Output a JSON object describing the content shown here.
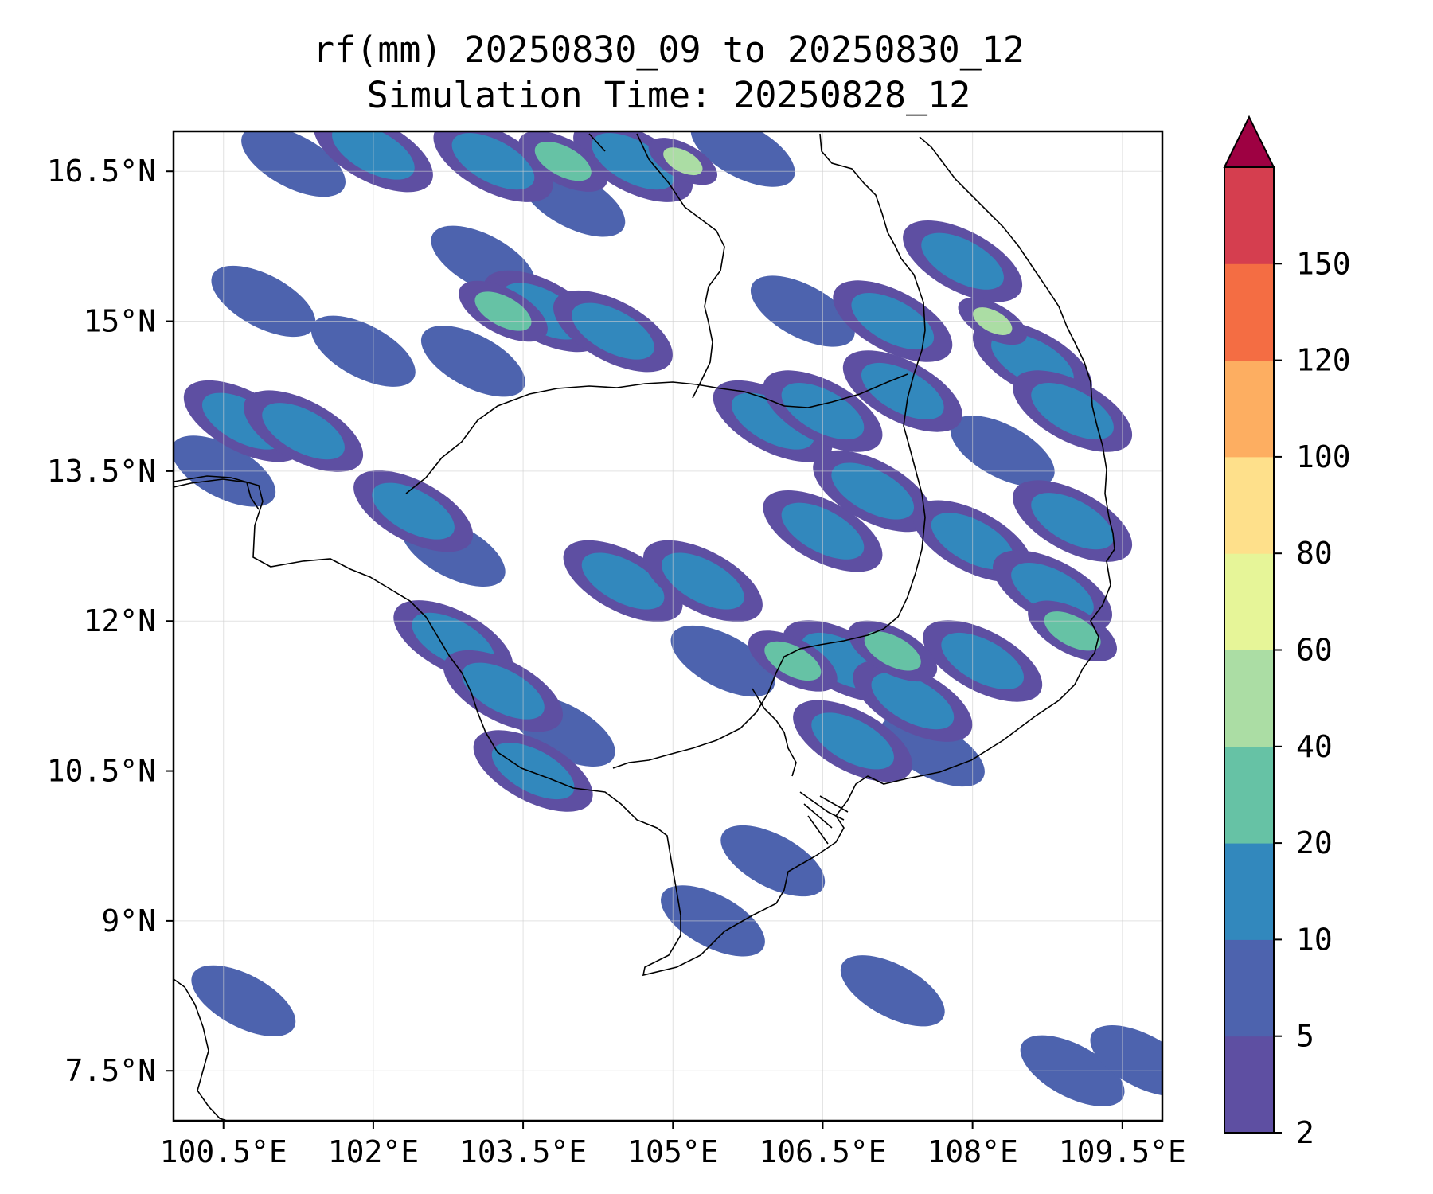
{
  "title": {
    "line1": "rf(mm) 20250830_09 to 20250830_12",
    "line2": "Simulation Time: 20250828_12"
  },
  "map": {
    "lon_range": [
      100.0,
      109.9
    ],
    "lat_range": [
      7.0,
      16.9
    ],
    "x_ticks": [
      {
        "value": 100.5,
        "label": "100.5°E"
      },
      {
        "value": 102.0,
        "label": "102°E"
      },
      {
        "value": 103.5,
        "label": "103.5°E"
      },
      {
        "value": 105.0,
        "label": "105°E"
      },
      {
        "value": 106.5,
        "label": "106.5°E"
      },
      {
        "value": 108.0,
        "label": "108°E"
      },
      {
        "value": 109.5,
        "label": "109.5°E"
      }
    ],
    "y_ticks": [
      {
        "value": 16.5,
        "label": "16.5°N"
      },
      {
        "value": 15.0,
        "label": "15°N"
      },
      {
        "value": 13.5,
        "label": "13.5°N"
      },
      {
        "value": 12.0,
        "label": "12°N"
      },
      {
        "value": 10.5,
        "label": "10.5°N"
      },
      {
        "value": 9.0,
        "label": "9°N"
      },
      {
        "value": 7.5,
        "label": "7.5°N"
      }
    ],
    "grid": true
  },
  "colorbar": {
    "levels": [
      {
        "label": "2",
        "value": 2
      },
      {
        "label": "5",
        "value": 5
      },
      {
        "label": "10",
        "value": 10
      },
      {
        "label": "20",
        "value": 20
      },
      {
        "label": "40",
        "value": 40
      },
      {
        "label": "60",
        "value": 60
      },
      {
        "label": "80",
        "value": 80
      },
      {
        "label": "100",
        "value": 100
      },
      {
        "label": "120",
        "value": 120
      },
      {
        "label": "150",
        "value": 150
      }
    ],
    "colors": [
      "#5e4fa2",
      "#4d63ae",
      "#3288bd",
      "#66c2a5",
      "#abdda4",
      "#e6f598",
      "#fee08b",
      "#fdae61",
      "#f46d43",
      "#d53e4f"
    ],
    "extend_color": "#9e0142"
  },
  "chart_data": {
    "type": "heatmap",
    "variable": "rf(mm)",
    "period": "20250830_09 to 20250830_12",
    "x_range": [
      100.0,
      109.9
    ],
    "y_range": [
      7.0,
      16.9
    ],
    "levels": [
      2,
      5,
      10,
      20,
      40,
      60,
      80,
      100,
      120,
      150
    ],
    "cells": [
      {
        "lon": 101.2,
        "lat": 16.6,
        "value": 5
      },
      {
        "lon": 102.0,
        "lat": 16.7,
        "value": 10
      },
      {
        "lon": 103.2,
        "lat": 16.6,
        "value": 10
      },
      {
        "lon": 103.9,
        "lat": 16.6,
        "value": 20
      },
      {
        "lon": 104.0,
        "lat": 16.2,
        "value": 5
      },
      {
        "lon": 104.6,
        "lat": 16.6,
        "value": 10
      },
      {
        "lon": 105.1,
        "lat": 16.6,
        "value": 40
      },
      {
        "lon": 105.7,
        "lat": 16.7,
        "value": 5
      },
      {
        "lon": 103.1,
        "lat": 15.6,
        "value": 5
      },
      {
        "lon": 103.7,
        "lat": 15.1,
        "value": 10
      },
      {
        "lon": 103.3,
        "lat": 15.1,
        "value": 20
      },
      {
        "lon": 104.4,
        "lat": 14.9,
        "value": 10
      },
      {
        "lon": 103.0,
        "lat": 14.6,
        "value": 5
      },
      {
        "lon": 101.9,
        "lat": 14.7,
        "value": 5
      },
      {
        "lon": 100.9,
        "lat": 15.2,
        "value": 5
      },
      {
        "lon": 100.7,
        "lat": 14.0,
        "value": 10
      },
      {
        "lon": 101.3,
        "lat": 13.9,
        "value": 10
      },
      {
        "lon": 100.5,
        "lat": 13.5,
        "value": 5
      },
      {
        "lon": 102.4,
        "lat": 13.1,
        "value": 10
      },
      {
        "lon": 102.8,
        "lat": 12.7,
        "value": 5
      },
      {
        "lon": 102.8,
        "lat": 11.8,
        "value": 10
      },
      {
        "lon": 103.3,
        "lat": 11.3,
        "value": 10
      },
      {
        "lon": 103.9,
        "lat": 10.9,
        "value": 5
      },
      {
        "lon": 103.6,
        "lat": 10.5,
        "value": 10
      },
      {
        "lon": 104.5,
        "lat": 12.4,
        "value": 10
      },
      {
        "lon": 105.3,
        "lat": 12.4,
        "value": 10
      },
      {
        "lon": 105.5,
        "lat": 11.6,
        "value": 5
      },
      {
        "lon": 106.2,
        "lat": 11.6,
        "value": 20
      },
      {
        "lon": 106.7,
        "lat": 11.6,
        "value": 10
      },
      {
        "lon": 107.2,
        "lat": 11.7,
        "value": 20
      },
      {
        "lon": 107.4,
        "lat": 11.2,
        "value": 10
      },
      {
        "lon": 106.8,
        "lat": 10.8,
        "value": 10
      },
      {
        "lon": 107.6,
        "lat": 10.7,
        "value": 5
      },
      {
        "lon": 106.5,
        "lat": 12.9,
        "value": 10
      },
      {
        "lon": 107.0,
        "lat": 13.3,
        "value": 10
      },
      {
        "lon": 106.0,
        "lat": 14.0,
        "value": 10
      },
      {
        "lon": 106.5,
        "lat": 14.1,
        "value": 10
      },
      {
        "lon": 107.3,
        "lat": 14.3,
        "value": 10
      },
      {
        "lon": 107.2,
        "lat": 15.0,
        "value": 10
      },
      {
        "lon": 106.3,
        "lat": 15.1,
        "value": 5
      },
      {
        "lon": 108.2,
        "lat": 15.0,
        "value": 40
      },
      {
        "lon": 107.9,
        "lat": 15.6,
        "value": 10
      },
      {
        "lon": 108.6,
        "lat": 14.6,
        "value": 10
      },
      {
        "lon": 109.0,
        "lat": 14.1,
        "value": 10
      },
      {
        "lon": 108.3,
        "lat": 13.7,
        "value": 5
      },
      {
        "lon": 109.0,
        "lat": 13.0,
        "value": 10
      },
      {
        "lon": 108.0,
        "lat": 12.8,
        "value": 10
      },
      {
        "lon": 108.8,
        "lat": 12.3,
        "value": 10
      },
      {
        "lon": 109.0,
        "lat": 11.9,
        "value": 20
      },
      {
        "lon": 108.1,
        "lat": 11.6,
        "value": 10
      },
      {
        "lon": 106.0,
        "lat": 9.6,
        "value": 5
      },
      {
        "lon": 105.4,
        "lat": 9.0,
        "value": 5
      },
      {
        "lon": 100.7,
        "lat": 8.2,
        "value": 5
      },
      {
        "lon": 109.0,
        "lat": 7.5,
        "value": 5
      },
      {
        "lon": 109.7,
        "lat": 7.6,
        "value": 5
      },
      {
        "lon": 107.2,
        "lat": 8.3,
        "value": 5
      }
    ]
  }
}
